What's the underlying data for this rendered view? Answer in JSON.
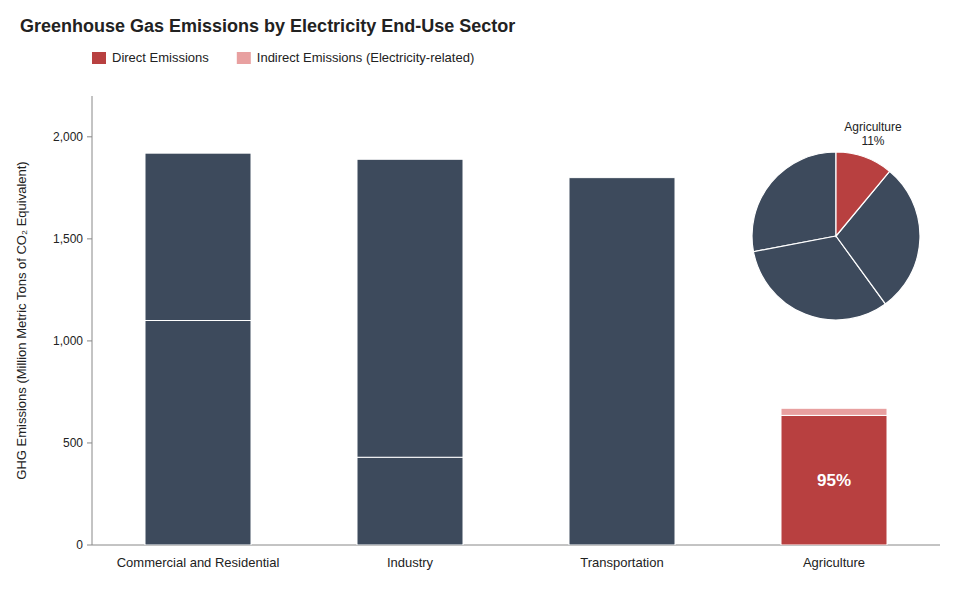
{
  "chart_data": [
    {
      "type": "bar",
      "title": "Greenhouse Gas Emissions by Electricity End-Use Sector",
      "y_label": "GHG Emissions (Million Metric Tons of CO₂ Equivalent)",
      "categories": [
        "Commercial and Residential",
        "Industry",
        "Transportation",
        "Agriculture"
      ],
      "series": [
        {
          "name": "Direct Emissions",
          "color": "#b84040",
          "colors": [
            "#3d4a5c",
            "#3d4a5c",
            "#3d4a5c",
            "#b84040"
          ],
          "values": [
            1100,
            430,
            1800,
            635
          ]
        },
        {
          "name": "Indirect Emissions (Electricity-related)",
          "color": "#e8a0a0",
          "colors": [
            "#3d4a5c",
            "#3d4a5c",
            "#3d4a5c",
            "#e8a0a0"
          ],
          "values": [
            820,
            1460,
            0,
            35
          ]
        }
      ],
      "stacked": true,
      "ylim": [
        0,
        2200
      ],
      "yticks": [
        0,
        500,
        {
          "value": 1000,
          "label": "1,000"
        },
        {
          "value": 1500,
          "label": "1,500"
        },
        {
          "value": 2000,
          "label": "2,000"
        }
      ],
      "grid": false,
      "legend": "upper left",
      "annotations": [
        {
          "text": "95%",
          "category": "Agriculture",
          "series": "Direct Emissions"
        }
      ]
    },
    {
      "type": "pie",
      "categories": [
        null,
        null,
        null,
        "Agriculture"
      ],
      "values": [
        28,
        32,
        29,
        11
      ],
      "value_labels": [
        null,
        null,
        null,
        "11%"
      ],
      "colors": [
        "#3d4a5c",
        "#3d4a5c",
        "#3d4a5c",
        "#b84040"
      ]
    }
  ]
}
